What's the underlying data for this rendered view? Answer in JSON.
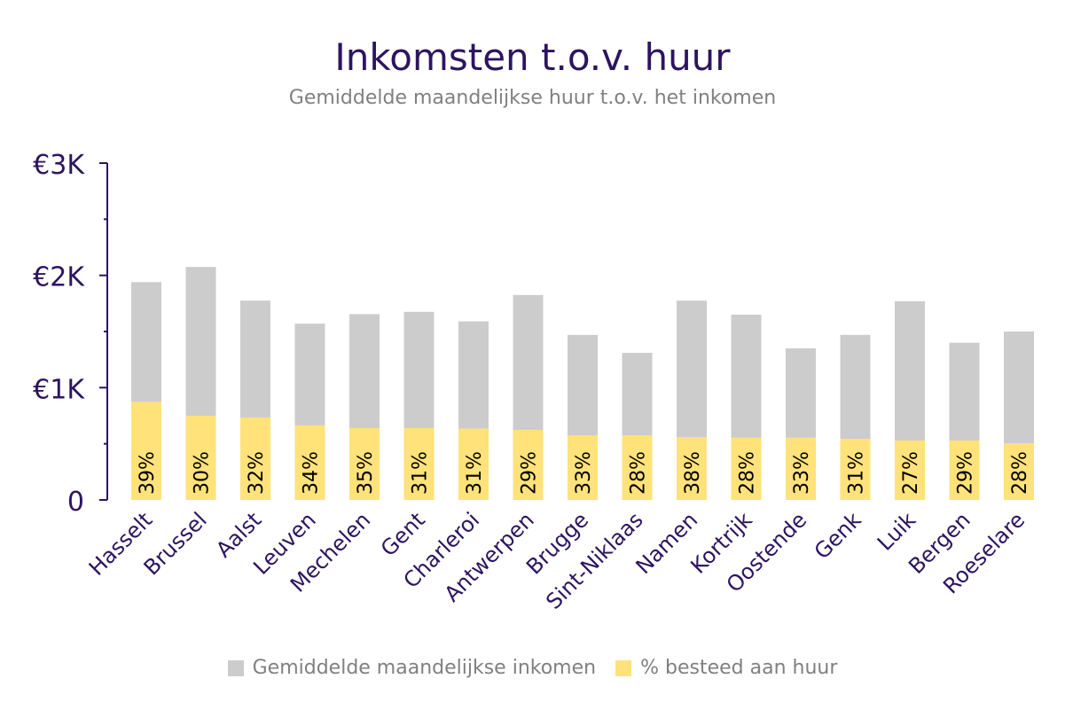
{
  "chart_data": {
    "type": "bar",
    "title": "Inkomsten t.o.v. huur",
    "subtitle": "Gemiddelde maandelijkse huur t.o.v. het inkomen",
    "xlabel": "",
    "ylabel": "",
    "ylim": [
      0,
      3000
    ],
    "yticks": [
      {
        "value": 0,
        "label": "0"
      },
      {
        "value": 1000,
        "label": "€1K"
      },
      {
        "value": 2000,
        "label": "€2K"
      },
      {
        "value": 3000,
        "label": "€3K"
      }
    ],
    "grid": false,
    "legend_position": "bottom",
    "categories": [
      "Hasselt",
      "Brussel",
      "Aalst",
      "Leuven",
      "Mechelen",
      "Gent",
      "Charleroi",
      "Antwerpen",
      "Brugge",
      "Sint-Niklaas",
      "Namen",
      "Kortrijk",
      "Oostende",
      "Genk",
      "Luik",
      "Bergen",
      "Roeselare"
    ],
    "series": [
      {
        "name": "Gemiddelde maandelijkse inkomen",
        "color": "#cccccc",
        "values": [
          1940,
          2075,
          1775,
          1570,
          1655,
          1675,
          1590,
          1825,
          1470,
          1310,
          1775,
          1650,
          1350,
          1470,
          1770,
          1400,
          1500
        ]
      },
      {
        "name": "% besteed aan huur",
        "color": "#ffe27a",
        "values": [
          875,
          750,
          735,
          665,
          640,
          640,
          635,
          625,
          575,
          575,
          560,
          555,
          555,
          545,
          530,
          530,
          505
        ],
        "labels": [
          "39%",
          "30%",
          "32%",
          "34%",
          "35%",
          "31%",
          "31%",
          "29%",
          "33%",
          "28%",
          "38%",
          "28%",
          "33%",
          "31%",
          "27%",
          "29%",
          "28%"
        ]
      }
    ]
  },
  "colors": {
    "axis": "#2d1460",
    "label": "#000000"
  }
}
